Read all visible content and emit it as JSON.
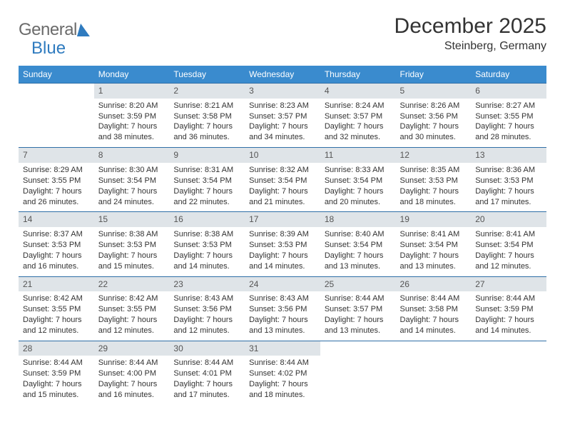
{
  "logo": {
    "part1": "General",
    "part2": "Blue"
  },
  "title": {
    "month": "December 2025",
    "location": "Steinberg, Germany"
  },
  "colors": {
    "header_bg": "#3a8bce",
    "header_text": "#ffffff",
    "daynum_bg": "#dfe4e8",
    "row_border": "#2f6fa7",
    "body_text": "#333333",
    "logo_gray": "#6b6b6b",
    "logo_blue": "#2f7bbf"
  },
  "weekdays": [
    "Sunday",
    "Monday",
    "Tuesday",
    "Wednesday",
    "Thursday",
    "Friday",
    "Saturday"
  ],
  "weeks": [
    [
      null,
      {
        "n": "1",
        "sr": "8:20 AM",
        "ss": "3:59 PM",
        "dl": "7 hours and 38 minutes."
      },
      {
        "n": "2",
        "sr": "8:21 AM",
        "ss": "3:58 PM",
        "dl": "7 hours and 36 minutes."
      },
      {
        "n": "3",
        "sr": "8:23 AM",
        "ss": "3:57 PM",
        "dl": "7 hours and 34 minutes."
      },
      {
        "n": "4",
        "sr": "8:24 AM",
        "ss": "3:57 PM",
        "dl": "7 hours and 32 minutes."
      },
      {
        "n": "5",
        "sr": "8:26 AM",
        "ss": "3:56 PM",
        "dl": "7 hours and 30 minutes."
      },
      {
        "n": "6",
        "sr": "8:27 AM",
        "ss": "3:55 PM",
        "dl": "7 hours and 28 minutes."
      }
    ],
    [
      {
        "n": "7",
        "sr": "8:29 AM",
        "ss": "3:55 PM",
        "dl": "7 hours and 26 minutes."
      },
      {
        "n": "8",
        "sr": "8:30 AM",
        "ss": "3:54 PM",
        "dl": "7 hours and 24 minutes."
      },
      {
        "n": "9",
        "sr": "8:31 AM",
        "ss": "3:54 PM",
        "dl": "7 hours and 22 minutes."
      },
      {
        "n": "10",
        "sr": "8:32 AM",
        "ss": "3:54 PM",
        "dl": "7 hours and 21 minutes."
      },
      {
        "n": "11",
        "sr": "8:33 AM",
        "ss": "3:54 PM",
        "dl": "7 hours and 20 minutes."
      },
      {
        "n": "12",
        "sr": "8:35 AM",
        "ss": "3:53 PM",
        "dl": "7 hours and 18 minutes."
      },
      {
        "n": "13",
        "sr": "8:36 AM",
        "ss": "3:53 PM",
        "dl": "7 hours and 17 minutes."
      }
    ],
    [
      {
        "n": "14",
        "sr": "8:37 AM",
        "ss": "3:53 PM",
        "dl": "7 hours and 16 minutes."
      },
      {
        "n": "15",
        "sr": "8:38 AM",
        "ss": "3:53 PM",
        "dl": "7 hours and 15 minutes."
      },
      {
        "n": "16",
        "sr": "8:38 AM",
        "ss": "3:53 PM",
        "dl": "7 hours and 14 minutes."
      },
      {
        "n": "17",
        "sr": "8:39 AM",
        "ss": "3:53 PM",
        "dl": "7 hours and 14 minutes."
      },
      {
        "n": "18",
        "sr": "8:40 AM",
        "ss": "3:54 PM",
        "dl": "7 hours and 13 minutes."
      },
      {
        "n": "19",
        "sr": "8:41 AM",
        "ss": "3:54 PM",
        "dl": "7 hours and 13 minutes."
      },
      {
        "n": "20",
        "sr": "8:41 AM",
        "ss": "3:54 PM",
        "dl": "7 hours and 12 minutes."
      }
    ],
    [
      {
        "n": "21",
        "sr": "8:42 AM",
        "ss": "3:55 PM",
        "dl": "7 hours and 12 minutes."
      },
      {
        "n": "22",
        "sr": "8:42 AM",
        "ss": "3:55 PM",
        "dl": "7 hours and 12 minutes."
      },
      {
        "n": "23",
        "sr": "8:43 AM",
        "ss": "3:56 PM",
        "dl": "7 hours and 12 minutes."
      },
      {
        "n": "24",
        "sr": "8:43 AM",
        "ss": "3:56 PM",
        "dl": "7 hours and 13 minutes."
      },
      {
        "n": "25",
        "sr": "8:44 AM",
        "ss": "3:57 PM",
        "dl": "7 hours and 13 minutes."
      },
      {
        "n": "26",
        "sr": "8:44 AM",
        "ss": "3:58 PM",
        "dl": "7 hours and 14 minutes."
      },
      {
        "n": "27",
        "sr": "8:44 AM",
        "ss": "3:59 PM",
        "dl": "7 hours and 14 minutes."
      }
    ],
    [
      {
        "n": "28",
        "sr": "8:44 AM",
        "ss": "3:59 PM",
        "dl": "7 hours and 15 minutes."
      },
      {
        "n": "29",
        "sr": "8:44 AM",
        "ss": "4:00 PM",
        "dl": "7 hours and 16 minutes."
      },
      {
        "n": "30",
        "sr": "8:44 AM",
        "ss": "4:01 PM",
        "dl": "7 hours and 17 minutes."
      },
      {
        "n": "31",
        "sr": "8:44 AM",
        "ss": "4:02 PM",
        "dl": "7 hours and 18 minutes."
      },
      null,
      null,
      null
    ]
  ],
  "labels": {
    "sunrise": "Sunrise:",
    "sunset": "Sunset:",
    "daylight": "Daylight:"
  }
}
